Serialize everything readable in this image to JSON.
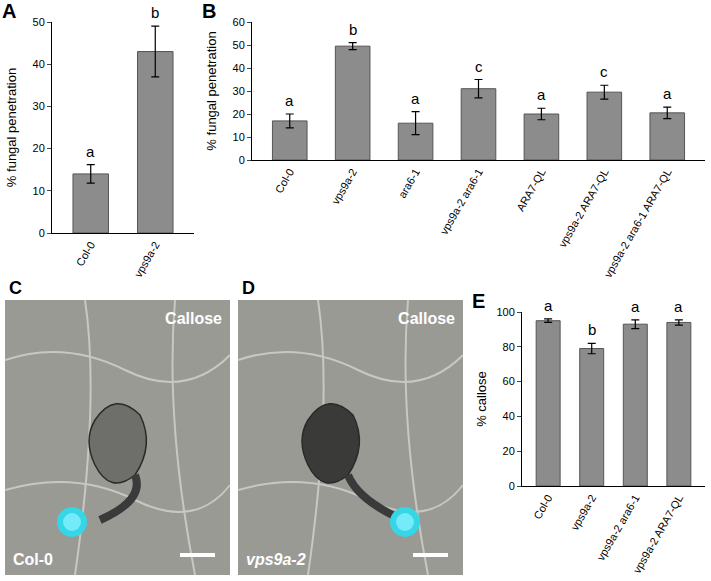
{
  "chart_data": [
    {
      "panel": "A",
      "type": "bar",
      "y_label": "% fungal penetration",
      "categories": [
        "Col-0",
        "vps9a-2"
      ],
      "values": [
        14,
        43
      ],
      "errors": [
        2.2,
        6
      ],
      "annotations": [
        "a",
        "b"
      ],
      "color": "#8c8c8c",
      "ylim": [
        0,
        50
      ],
      "yticks": [
        0,
        10,
        20,
        30,
        40,
        50
      ],
      "grid": false
    },
    {
      "panel": "B",
      "type": "bar",
      "y_label": "% fungal penetration",
      "categories": [
        "Col-0",
        "vps9a-2",
        "ara6-1",
        "vps9a-2 ara6-1",
        "ARA7-QL",
        "vps9a-2 ARA7-QL",
        "vps9a-2 ara6-1 ARA7-QL"
      ],
      "values": [
        17,
        49.5,
        16,
        31,
        20,
        29.5,
        20.5
      ],
      "errors": [
        3,
        1.5,
        5,
        4,
        2.5,
        3,
        2.5
      ],
      "annotations": [
        "a",
        "b",
        "a",
        "c",
        "a",
        "c",
        "a"
      ],
      "color": "#8c8c8c",
      "ylim": [
        0,
        60
      ],
      "yticks": [
        0,
        10,
        20,
        30,
        40,
        50,
        60
      ],
      "grid": false
    },
    {
      "panel": "E",
      "type": "bar",
      "y_label": "% callose",
      "categories": [
        "Col-0",
        "vps9a-2",
        "vps9a-2 ara6-1",
        "vps9a-2 ARA7-QL"
      ],
      "values": [
        95,
        79,
        93,
        94
      ],
      "errors": [
        1,
        3,
        2.5,
        1.5
      ],
      "annotations": [
        "a",
        "b",
        "a",
        "a"
      ],
      "color": "#8c8c8c",
      "ylim": [
        0,
        100
      ],
      "yticks": [
        0,
        20,
        40,
        60,
        80,
        100
      ],
      "grid": false
    }
  ],
  "images": [
    {
      "panel": "C",
      "label": "Callose",
      "sample": "Col-0"
    },
    {
      "panel": "D",
      "label": "Callose",
      "sample": "vps9a-2"
    }
  ]
}
